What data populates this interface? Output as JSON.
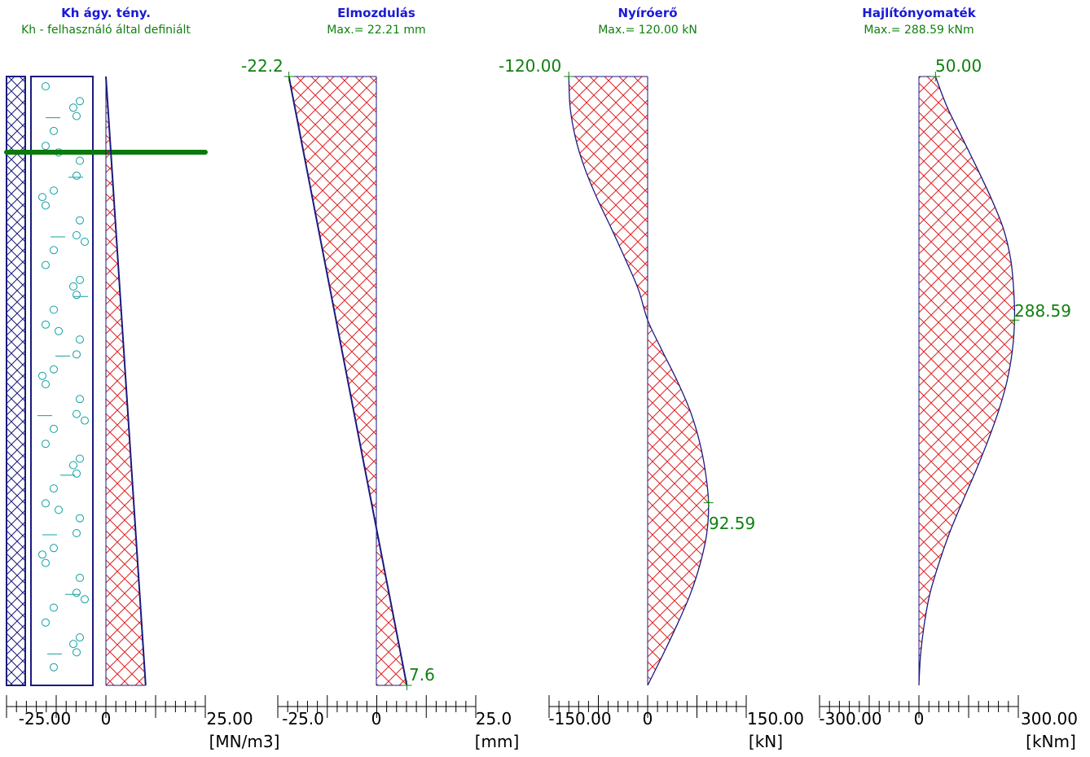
{
  "colors": {
    "title": "#1a1ad6",
    "value": "#108010",
    "outline": "#1a1a80",
    "hatch": "#e02020",
    "green_line": "#0a7a0a",
    "circles": "#10a0a0"
  },
  "chart_data": [
    {
      "type": "area",
      "title": "Kh ágy. tény.",
      "subtitle": "Kh - felhasználó által definiált",
      "unit": "[MN/m3]",
      "xlim": [
        -25.0,
        25.0
      ],
      "tick_labels": [
        "-25.00",
        "0",
        "25.00"
      ],
      "profile": [
        {
          "depth": 0,
          "value": 0
        },
        {
          "depth": 1,
          "value": 10
        }
      ],
      "value_labels": []
    },
    {
      "type": "area",
      "title": "Elmozdulás",
      "subtitle": "Max.= 22.21 mm",
      "unit": "[mm]",
      "xlim": [
        -25.0,
        25.0
      ],
      "tick_labels": [
        "-25.0",
        "0",
        "25.0"
      ],
      "profile": [
        {
          "depth": 0,
          "value": -22.2
        },
        {
          "depth": 1,
          "value": 7.6
        }
      ],
      "value_labels": [
        {
          "text": "-22.2",
          "depth": 0,
          "value": -22.2
        },
        {
          "text": "7.6",
          "depth": 1,
          "value": 7.6
        }
      ]
    },
    {
      "type": "area",
      "title": "Nyíróerő",
      "subtitle": "Max.= 120.00 kN",
      "unit": "[kN]",
      "xlim": [
        -150.0,
        150.0
      ],
      "tick_labels": [
        "-150.00",
        "0",
        "150.00"
      ],
      "profile": [
        {
          "depth": 0.0,
          "value": -120.0
        },
        {
          "depth": 0.05,
          "value": -118.0
        },
        {
          "depth": 0.1,
          "value": -110.0
        },
        {
          "depth": 0.15,
          "value": -96.0
        },
        {
          "depth": 0.2,
          "value": -77.0
        },
        {
          "depth": 0.25,
          "value": -55.0
        },
        {
          "depth": 0.3,
          "value": -34.0
        },
        {
          "depth": 0.35,
          "value": -14.0
        },
        {
          "depth": 0.4,
          "value": 0.0
        },
        {
          "depth": 0.45,
          "value": 22.0
        },
        {
          "depth": 0.5,
          "value": 45.0
        },
        {
          "depth": 0.55,
          "value": 65.0
        },
        {
          "depth": 0.6,
          "value": 79.0
        },
        {
          "depth": 0.65,
          "value": 88.0
        },
        {
          "depth": 0.7,
          "value": 92.59
        },
        {
          "depth": 0.75,
          "value": 90.0
        },
        {
          "depth": 0.8,
          "value": 80.0
        },
        {
          "depth": 0.85,
          "value": 65.0
        },
        {
          "depth": 0.9,
          "value": 45.0
        },
        {
          "depth": 0.95,
          "value": 23.0
        },
        {
          "depth": 1.0,
          "value": 0.0
        }
      ],
      "value_labels": [
        {
          "text": "-120.00",
          "depth": 0,
          "value": -120.0
        },
        {
          "text": "92.59",
          "depth": 0.7,
          "value": 92.59
        }
      ]
    },
    {
      "type": "area",
      "title": "Hajlítónyomaték",
      "subtitle": "Max.= 288.59 kNm",
      "unit": "[kNm]",
      "xlim": [
        -300.0,
        300.0
      ],
      "tick_labels": [
        "-300.00",
        "0",
        "300.00"
      ],
      "profile": [
        {
          "depth": 0.0,
          "value": 50.0
        },
        {
          "depth": 0.05,
          "value": 85.0
        },
        {
          "depth": 0.1,
          "value": 130.0
        },
        {
          "depth": 0.15,
          "value": 175.0
        },
        {
          "depth": 0.2,
          "value": 218.0
        },
        {
          "depth": 0.25,
          "value": 255.0
        },
        {
          "depth": 0.3,
          "value": 277.0
        },
        {
          "depth": 0.35,
          "value": 286.0
        },
        {
          "depth": 0.4,
          "value": 288.59
        },
        {
          "depth": 0.45,
          "value": 282.0
        },
        {
          "depth": 0.5,
          "value": 266.0
        },
        {
          "depth": 0.55,
          "value": 240.0
        },
        {
          "depth": 0.6,
          "value": 207.0
        },
        {
          "depth": 0.65,
          "value": 170.0
        },
        {
          "depth": 0.7,
          "value": 130.0
        },
        {
          "depth": 0.75,
          "value": 92.0
        },
        {
          "depth": 0.8,
          "value": 60.0
        },
        {
          "depth": 0.85,
          "value": 33.0
        },
        {
          "depth": 0.9,
          "value": 16.0
        },
        {
          "depth": 0.95,
          "value": 5.0
        },
        {
          "depth": 1.0,
          "value": 0.0
        }
      ],
      "value_labels": [
        {
          "text": "50.00",
          "depth": 0,
          "value": 50.0
        },
        {
          "text": "288.59",
          "depth": 0.4,
          "value": 288.59
        }
      ]
    }
  ]
}
